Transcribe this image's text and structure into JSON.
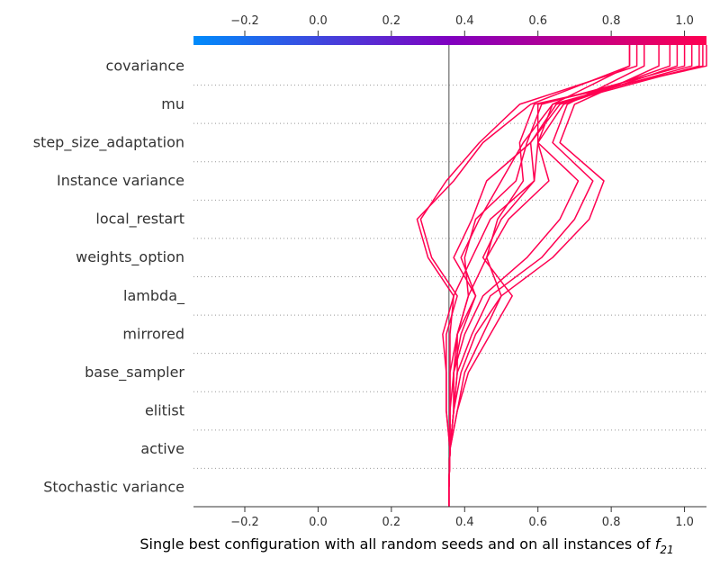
{
  "chart_data": {
    "type": "line",
    "title": "",
    "xlabel": "Single best configuration with all random seeds and on all instances of",
    "xlabel_math": {
      "base": "f",
      "subscript": "21"
    },
    "ylabel": "",
    "xlim": [
      -0.34,
      1.06
    ],
    "x_ticks": [
      -0.2,
      0.0,
      0.2,
      0.4,
      0.6,
      0.8,
      1.0
    ],
    "x_tick_labels": [
      "−0.2",
      "0.0",
      "0.2",
      "0.4",
      "0.6",
      "0.8",
      "1.0"
    ],
    "base_value": 0.357,
    "base_line_color": "#888888",
    "line_color": "#ff0051",
    "colorbar": {
      "range": [
        -0.34,
        1.06
      ],
      "low_color": "#008bfb",
      "mid_color": "#8000c0",
      "high_color": "#ff0051"
    },
    "y_order": "top-to-bottom",
    "features": [
      "covariance",
      "mu",
      "step_size_adaptation",
      "Instance variance",
      "local_restart",
      "weights_option",
      "lambda_",
      "mirrored",
      "base_sampler",
      "elitist",
      "active",
      "Stochastic variance"
    ],
    "series": [
      {
        "values": [
          0.96,
          0.66,
          0.58,
          0.59,
          0.47,
          0.42,
          0.37,
          0.36,
          0.36,
          0.36,
          0.36,
          0.357
        ]
      },
      {
        "values": [
          0.98,
          0.67,
          0.6,
          0.63,
          0.52,
          0.46,
          0.41,
          0.38,
          0.36,
          0.36,
          0.36,
          0.357
        ]
      },
      {
        "values": [
          1.0,
          0.61,
          0.57,
          0.54,
          0.43,
          0.4,
          0.41,
          0.38,
          0.37,
          0.36,
          0.36,
          0.357
        ]
      },
      {
        "values": [
          1.02,
          0.64,
          0.56,
          0.5,
          0.44,
          0.39,
          0.43,
          0.38,
          0.38,
          0.37,
          0.36,
          0.357
        ]
      },
      {
        "values": [
          1.04,
          0.65,
          0.58,
          0.46,
          0.42,
          0.37,
          0.43,
          0.39,
          0.37,
          0.37,
          0.36,
          0.357
        ]
      },
      {
        "values": [
          0.93,
          0.7,
          0.66,
          0.78,
          0.74,
          0.64,
          0.5,
          0.45,
          0.4,
          0.38,
          0.36,
          0.357
        ]
      },
      {
        "values": [
          0.89,
          0.68,
          0.64,
          0.75,
          0.7,
          0.61,
          0.47,
          0.42,
          0.38,
          0.37,
          0.36,
          0.357
        ]
      },
      {
        "values": [
          0.85,
          0.64,
          0.6,
          0.71,
          0.66,
          0.57,
          0.45,
          0.4,
          0.37,
          0.37,
          0.36,
          0.357
        ]
      },
      {
        "values": [
          1.05,
          0.6,
          0.6,
          0.59,
          0.5,
          0.45,
          0.53,
          0.47,
          0.41,
          0.38,
          0.36,
          0.357
        ]
      },
      {
        "values": [
          1.06,
          0.59,
          0.55,
          0.56,
          0.49,
          0.46,
          0.5,
          0.43,
          0.39,
          0.37,
          0.36,
          0.357
        ]
      },
      {
        "values": [
          0.85,
          0.58,
          0.45,
          0.37,
          0.27,
          0.3,
          0.37,
          0.34,
          0.35,
          0.35,
          0.36,
          0.357
        ]
      },
      {
        "values": [
          0.87,
          0.55,
          0.44,
          0.35,
          0.28,
          0.31,
          0.38,
          0.35,
          0.35,
          0.35,
          0.36,
          0.357
        ]
      }
    ]
  }
}
